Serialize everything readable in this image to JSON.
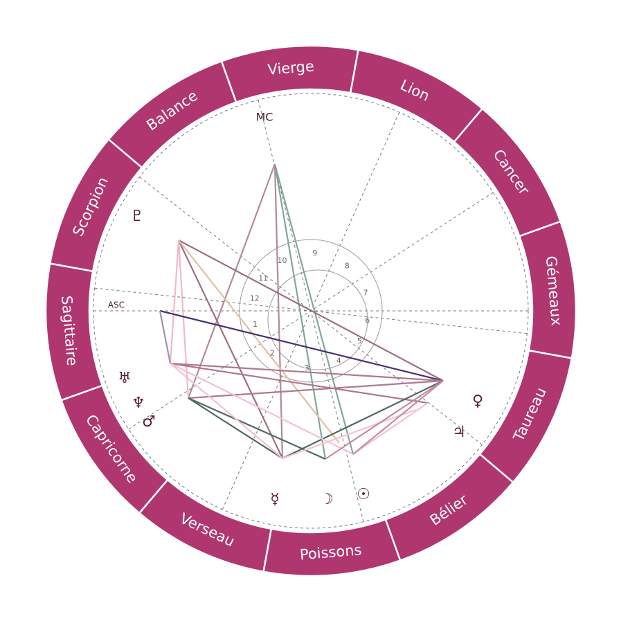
{
  "signs": [
    "Vierge",
    "Lion",
    "Cancer",
    "Gémeaux",
    "Taureau",
    "Bélier",
    "Poissons",
    "Verseau",
    "Capricorne",
    "Sagittaire",
    "Scorpion",
    "Balance"
  ],
  "angles": {
    "asc": "ASC",
    "mc": "MC"
  },
  "houses": [
    "1",
    "2",
    "3",
    "4",
    "5",
    "6",
    "7",
    "8",
    "9",
    "10",
    "11",
    "12"
  ],
  "planets": [
    "♇",
    "♅",
    "♆",
    "♂",
    "♀",
    "♃",
    "☿",
    "☽",
    "☉"
  ]
}
